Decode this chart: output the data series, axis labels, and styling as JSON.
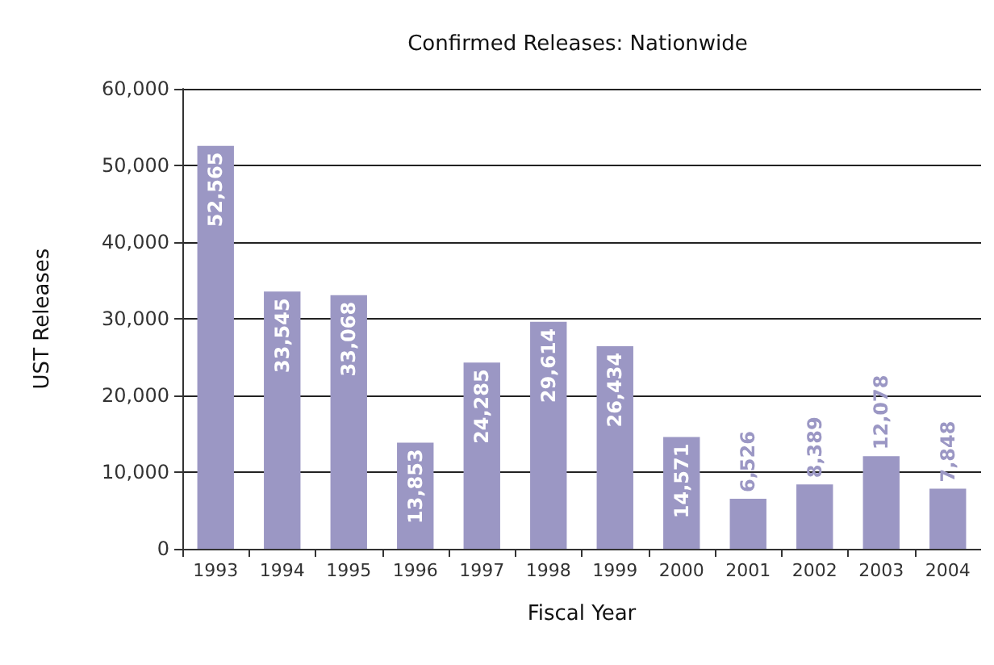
{
  "chart_data": {
    "type": "bar",
    "title": "Confirmed Releases: Nationwide",
    "xlabel": "Fiscal Year",
    "ylabel": "UST Releases",
    "categories": [
      "1993",
      "1994",
      "1995",
      "1996",
      "1997",
      "1998",
      "1999",
      "2000",
      "2001",
      "2002",
      "2003",
      "2004"
    ],
    "values": [
      52565,
      33545,
      33068,
      13853,
      24285,
      29614,
      26434,
      14571,
      6526,
      8389,
      12078,
      7848
    ],
    "value_labels": [
      "52,565",
      "33,545",
      "33,068",
      "13,853",
      "24,285",
      "29,614",
      "26,434",
      "14,571",
      "6,526",
      "8,389",
      "12,078",
      "7,848"
    ],
    "color": "#9b97c4",
    "ylim": [
      0,
      60000
    ],
    "yticks": [
      {
        "value": 0,
        "label": "0"
      },
      {
        "value": 10000,
        "label": "10,000"
      },
      {
        "value": 20000,
        "label": "20,000"
      },
      {
        "value": 30000,
        "label": "30,000"
      },
      {
        "value": 40000,
        "label": "40,000"
      },
      {
        "value": 50000,
        "label": "50,000"
      },
      {
        "value": 60000,
        "label": "60,000"
      }
    ],
    "grid": "y"
  }
}
